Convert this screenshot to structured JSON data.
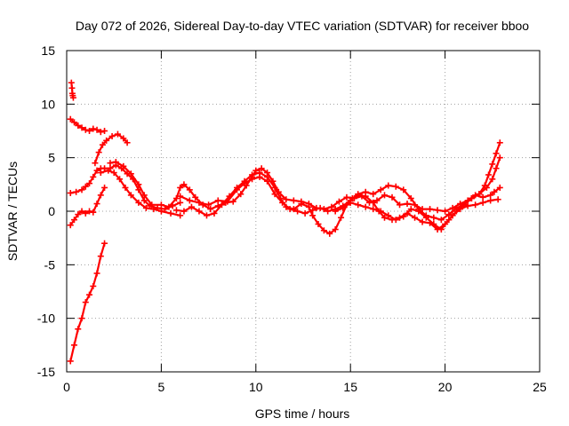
{
  "chart_data": {
    "type": "scatter",
    "title": "Day 072 of 2026, Sidereal Day-to-day VTEC variation (SDTVAR) for receiver bboo",
    "xlabel": "GPS time / hours",
    "ylabel": "SDTVAR / TECUs",
    "xlim": [
      0,
      25
    ],
    "ylim": [
      -15,
      15
    ],
    "xticks": [
      0,
      5,
      10,
      15,
      20,
      25
    ],
    "yticks": [
      -15,
      -10,
      -5,
      0,
      5,
      10,
      15
    ],
    "grid": true,
    "marker": "plus",
    "color": "#ff0000",
    "series": [
      {
        "name": "s1",
        "points": [
          [
            0.25,
            12.0
          ],
          [
            0.28,
            11.5
          ],
          [
            0.3,
            11.0
          ],
          [
            0.32,
            10.8
          ],
          [
            0.35,
            10.6
          ]
        ]
      },
      {
        "name": "s2",
        "points": [
          [
            0.2,
            8.6
          ],
          [
            0.4,
            8.3
          ],
          [
            0.6,
            8.0
          ],
          [
            0.8,
            7.8
          ],
          [
            1.0,
            7.6
          ],
          [
            1.2,
            7.5
          ],
          [
            1.4,
            7.7
          ],
          [
            1.6,
            7.6
          ],
          [
            1.8,
            7.4
          ],
          [
            2.0,
            7.5
          ]
        ]
      },
      {
        "name": "s3",
        "points": [
          [
            0.2,
            1.7
          ],
          [
            0.5,
            1.8
          ],
          [
            0.8,
            2.0
          ],
          [
            1.0,
            2.3
          ],
          [
            1.2,
            2.6
          ],
          [
            1.4,
            3.2
          ],
          [
            1.6,
            3.8
          ],
          [
            1.8,
            4.0
          ],
          [
            2.0,
            4.0
          ],
          [
            2.3,
            4.0
          ],
          [
            2.6,
            4.3
          ],
          [
            2.9,
            4.0
          ],
          [
            3.2,
            3.5
          ],
          [
            3.5,
            3.0
          ],
          [
            3.8,
            2.0
          ],
          [
            4.1,
            1.0
          ],
          [
            4.4,
            0.5
          ],
          [
            4.8,
            0.3
          ],
          [
            5.2,
            0.2
          ],
          [
            5.6,
            0.5
          ],
          [
            6.0,
            0.8
          ]
        ]
      },
      {
        "name": "s4",
        "points": [
          [
            0.2,
            -1.3
          ],
          [
            0.4,
            -0.8
          ],
          [
            0.6,
            -0.3
          ],
          [
            0.8,
            0.0
          ],
          [
            1.0,
            -0.2
          ],
          [
            1.2,
            0.0
          ],
          [
            1.4,
            -0.1
          ],
          [
            1.6,
            0.7
          ],
          [
            1.8,
            1.5
          ],
          [
            2.0,
            2.2
          ]
        ]
      },
      {
        "name": "s5",
        "points": [
          [
            0.2,
            -14.0
          ],
          [
            0.4,
            -12.5
          ],
          [
            0.6,
            -11.0
          ],
          [
            0.8,
            -10.0
          ],
          [
            1.0,
            -8.5
          ],
          [
            1.2,
            -7.8
          ],
          [
            1.4,
            -7.0
          ],
          [
            1.6,
            -5.8
          ],
          [
            1.8,
            -4.2
          ],
          [
            2.0,
            -3.0
          ]
        ]
      },
      {
        "name": "s6",
        "points": [
          [
            1.5,
            4.5
          ],
          [
            1.7,
            5.5
          ],
          [
            1.9,
            6.2
          ],
          [
            2.1,
            6.6
          ],
          [
            2.4,
            7.0
          ],
          [
            2.7,
            7.2
          ],
          [
            3.0,
            6.8
          ],
          [
            3.2,
            6.4
          ]
        ]
      },
      {
        "name": "s7",
        "points": [
          [
            1.8,
            3.6
          ],
          [
            2.2,
            3.8
          ],
          [
            2.5,
            3.6
          ],
          [
            2.8,
            3.0
          ],
          [
            3.1,
            2.2
          ],
          [
            3.4,
            1.5
          ],
          [
            3.8,
            0.8
          ],
          [
            4.2,
            0.3
          ],
          [
            4.6,
            0.2
          ],
          [
            5.0,
            0.0
          ],
          [
            5.5,
            -0.2
          ],
          [
            6.0,
            -0.4
          ]
        ]
      },
      {
        "name": "s8",
        "points": [
          [
            2.3,
            4.5
          ],
          [
            2.6,
            4.6
          ],
          [
            3.0,
            4.2
          ],
          [
            3.4,
            3.5
          ],
          [
            3.8,
            2.5
          ],
          [
            4.1,
            1.5
          ],
          [
            4.5,
            0.6
          ],
          [
            5.0,
            0.6
          ],
          [
            5.4,
            0.4
          ],
          [
            5.8,
            1.2
          ],
          [
            6.0,
            2.2
          ],
          [
            6.2,
            2.5
          ],
          [
            6.5,
            2.0
          ],
          [
            6.8,
            1.3
          ],
          [
            7.2,
            0.6
          ],
          [
            7.6,
            0.2
          ],
          [
            8.0,
            0.5
          ],
          [
            8.4,
            0.8
          ],
          [
            8.8,
            0.9
          ],
          [
            9.2,
            1.6
          ],
          [
            9.5,
            2.4
          ],
          [
            9.8,
            3.2
          ],
          [
            10.0,
            3.8
          ],
          [
            10.3,
            4.0
          ],
          [
            10.6,
            3.6
          ],
          [
            10.9,
            2.8
          ],
          [
            11.2,
            1.8
          ],
          [
            11.6,
            1.1
          ],
          [
            12.0,
            1.0
          ],
          [
            12.4,
            0.9
          ],
          [
            12.8,
            0.7
          ],
          [
            13.2,
            0.3
          ],
          [
            13.6,
            0.2
          ],
          [
            14.0,
            0.4
          ],
          [
            14.4,
            0.9
          ],
          [
            14.8,
            1.3
          ],
          [
            15.2,
            1.2
          ],
          [
            15.6,
            1.4
          ],
          [
            16.0,
            0.8
          ],
          [
            16.4,
            1.0
          ],
          [
            16.8,
            1.5
          ],
          [
            17.2,
            1.3
          ],
          [
            17.6,
            0.6
          ],
          [
            18.0,
            0.7
          ],
          [
            18.4,
            0.6
          ],
          [
            18.8,
            0.2
          ],
          [
            19.2,
            0.2
          ],
          [
            19.6,
            0.1
          ],
          [
            20.0,
            0.0
          ],
          [
            20.4,
            0.3
          ],
          [
            20.8,
            0.7
          ],
          [
            21.2,
            1.0
          ],
          [
            21.6,
            1.5
          ],
          [
            22.0,
            1.3
          ],
          [
            22.4,
            1.5
          ],
          [
            22.6,
            1.8
          ],
          [
            22.9,
            2.2
          ]
        ]
      },
      {
        "name": "s9",
        "points": [
          [
            5.8,
            0.1
          ],
          [
            6.2,
            0.0
          ],
          [
            6.6,
            0.4
          ],
          [
            7.0,
            0.0
          ],
          [
            7.4,
            -0.4
          ],
          [
            7.8,
            -0.2
          ],
          [
            8.2,
            0.6
          ],
          [
            8.6,
            1.4
          ],
          [
            9.0,
            2.2
          ],
          [
            9.4,
            2.8
          ],
          [
            9.8,
            3.4
          ],
          [
            10.2,
            3.6
          ],
          [
            10.6,
            3.2
          ],
          [
            11.0,
            2.2
          ],
          [
            11.3,
            1.2
          ],
          [
            11.6,
            0.4
          ],
          [
            12.0,
            0.2
          ],
          [
            12.4,
            0.7
          ],
          [
            12.8,
            0.4
          ],
          [
            13.0,
            -0.4
          ],
          [
            13.3,
            -1.2
          ],
          [
            13.6,
            -1.8
          ],
          [
            13.9,
            -2.1
          ],
          [
            14.2,
            -1.7
          ],
          [
            14.5,
            -0.6
          ],
          [
            14.8,
            0.6
          ],
          [
            15.1,
            1.2
          ],
          [
            15.4,
            1.5
          ],
          [
            15.8,
            1.4
          ],
          [
            16.2,
            0.8
          ],
          [
            16.5,
            0.0
          ],
          [
            16.8,
            -0.6
          ],
          [
            17.2,
            -0.8
          ],
          [
            17.6,
            -0.6
          ],
          [
            18.0,
            -0.2
          ],
          [
            18.4,
            -0.6
          ],
          [
            18.8,
            -1.0
          ],
          [
            19.2,
            -1.1
          ],
          [
            19.6,
            -1.7
          ],
          [
            20.0,
            -1.2
          ],
          [
            20.4,
            -0.4
          ],
          [
            20.8,
            0.2
          ],
          [
            21.2,
            0.5
          ],
          [
            21.6,
            0.6
          ],
          [
            22.0,
            0.8
          ],
          [
            22.4,
            1.0
          ],
          [
            22.8,
            1.1
          ]
        ]
      },
      {
        "name": "s10",
        "points": [
          [
            6.0,
            1.4
          ],
          [
            6.5,
            1.0
          ],
          [
            7.0,
            0.8
          ],
          [
            7.5,
            0.6
          ],
          [
            8.0,
            1.0
          ],
          [
            8.5,
            0.9
          ],
          [
            9.0,
            2.0
          ],
          [
            9.4,
            2.6
          ],
          [
            9.8,
            3.0
          ],
          [
            10.2,
            3.2
          ],
          [
            10.6,
            2.8
          ],
          [
            11.0,
            1.6
          ],
          [
            11.4,
            0.8
          ],
          [
            11.8,
            0.2
          ],
          [
            12.2,
            0.0
          ],
          [
            12.6,
            -0.2
          ],
          [
            13.0,
            0.1
          ],
          [
            13.4,
            0.3
          ],
          [
            13.8,
            0.0
          ],
          [
            14.2,
            0.2
          ],
          [
            14.6,
            0.5
          ],
          [
            15.0,
            1.0
          ],
          [
            15.4,
            1.6
          ],
          [
            15.8,
            1.8
          ],
          [
            16.2,
            1.6
          ],
          [
            16.6,
            2.0
          ],
          [
            17.0,
            2.4
          ],
          [
            17.4,
            2.3
          ],
          [
            17.8,
            2.0
          ],
          [
            18.2,
            1.2
          ],
          [
            18.6,
            0.2
          ],
          [
            19.0,
            -0.4
          ],
          [
            19.4,
            -0.6
          ],
          [
            19.8,
            -0.8
          ],
          [
            20.2,
            -0.3
          ],
          [
            20.6,
            0.3
          ],
          [
            21.0,
            0.6
          ],
          [
            21.4,
            1.2
          ],
          [
            21.8,
            1.6
          ],
          [
            22.2,
            2.2
          ],
          [
            22.5,
            3.0
          ],
          [
            22.7,
            4.0
          ],
          [
            22.9,
            5.0
          ]
        ]
      },
      {
        "name": "s11",
        "points": [
          [
            14.2,
            0.0
          ],
          [
            14.6,
            0.3
          ],
          [
            15.0,
            0.8
          ],
          [
            15.4,
            0.6
          ],
          [
            15.8,
            0.4
          ],
          [
            16.2,
            0.2
          ],
          [
            16.6,
            0.0
          ],
          [
            17.0,
            -0.4
          ],
          [
            17.4,
            -0.8
          ],
          [
            17.8,
            -0.5
          ],
          [
            18.2,
            0.2
          ],
          [
            18.6,
            0.0
          ],
          [
            19.0,
            -0.6
          ],
          [
            19.4,
            -1.2
          ],
          [
            19.8,
            -1.7
          ],
          [
            20.2,
            -0.8
          ],
          [
            20.6,
            0.0
          ],
          [
            21.0,
            0.6
          ],
          [
            21.4,
            1.2
          ],
          [
            21.8,
            1.6
          ],
          [
            22.1,
            2.4
          ],
          [
            22.3,
            3.4
          ],
          [
            22.5,
            4.4
          ],
          [
            22.7,
            5.4
          ],
          [
            22.9,
            6.4
          ]
        ]
      }
    ]
  }
}
